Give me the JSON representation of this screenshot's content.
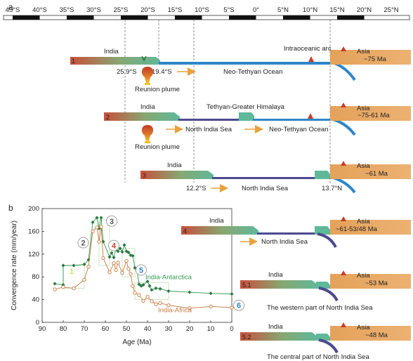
{
  "scale": {
    "labels": [
      "45°S",
      "40°S",
      "35°S",
      "30°S",
      "25°S",
      "20°S",
      "15°S",
      "10°S",
      "5°S",
      "0°",
      "5°N",
      "10°N",
      "15°N",
      "20°N",
      "25°N"
    ]
  },
  "panel_a": {
    "letter": "a",
    "colors": {
      "india_red": "#c8503c",
      "india_green": "#5fb89a",
      "asia_orange": "#e8a860",
      "ocean_blue": "#2f86c8",
      "north_sea_purple": "#4c4a8e",
      "arrow_orange": "#e8a23c",
      "arc_red": "#c83c2a",
      "plume_red": "#c03a26",
      "plume_yellow": "#f0c22c"
    },
    "row1": {
      "num": "1",
      "india": "India",
      "asia": "Asia",
      "age": "~75 Ma",
      "arc": "Intraoceanic arc",
      "lat_left": "25.9°S",
      "lat_right": "19.4°S",
      "ocean": "Neo-Tethyan Ocean",
      "plume": "Reunion plume"
    },
    "row2": {
      "num": "2",
      "india": "India",
      "asia": "Asia",
      "age": "~75-61 Ma",
      "tethyan": "Tethyan-Greater Himalaya",
      "north_sea": "North India Sea",
      "ocean": "Neo-Tethyan Ocean",
      "plume": "Reunion plume"
    },
    "row3": {
      "num": "3",
      "india": "India",
      "asia": "Asia",
      "age": "~61 Ma",
      "lat_left": "12.2°S",
      "north_sea": "North India Sea",
      "lat_right": "13.7°N"
    }
  },
  "panel_b": {
    "letter": "b",
    "row4": {
      "num": "4",
      "india": "India",
      "asia": "Asia",
      "age": "~61-53/48 Ma",
      "north_sea": "North India Sea"
    },
    "row5_1": {
      "num": "5.1",
      "india": "India",
      "asia": "Asia",
      "age": "~53 Ma",
      "caption": "The western part of North India Sea"
    },
    "row5_2": {
      "num": "5.2",
      "india": "India",
      "asia": "Asia",
      "age": "~48 Ma",
      "caption": "The central part of North India Sea"
    }
  },
  "chart_data": {
    "type": "line",
    "xlabel": "Age (Ma)",
    "ylabel": "Convergence rate (mm/year)",
    "xlim": [
      90,
      0
    ],
    "ylim": [
      0,
      200
    ],
    "xticks": [
      90,
      80,
      70,
      60,
      50,
      40,
      30,
      20,
      10,
      0
    ],
    "yticks": [
      0,
      40,
      80,
      120,
      160,
      200
    ],
    "series": [
      {
        "name": "India-Antarctica",
        "color": "#2e9a52",
        "x": [
          84,
          80,
          80,
          75,
          70,
          68,
          66,
          64,
          63,
          62,
          61,
          58,
          57,
          56,
          55,
          54,
          53,
          52,
          51,
          50,
          49,
          48,
          47,
          46,
          45,
          44,
          43,
          42,
          40,
          39,
          38,
          36,
          34,
          30,
          20,
          10,
          0
        ],
        "y": [
          68,
          66,
          100,
          100,
          102,
          110,
          176,
          184,
          165,
          184,
          142,
          115,
          122,
          114,
          128,
          125,
          130,
          124,
          136,
          125,
          123,
          118,
          117,
          96,
          92,
          67,
          64,
          66,
          72,
          64,
          57,
          60,
          59,
          55,
          53,
          51,
          50
        ]
      },
      {
        "name": "India-Africa",
        "color": "#c8783c",
        "x": [
          84,
          80,
          75,
          70,
          68,
          66,
          64,
          63,
          62,
          61,
          58,
          56,
          55,
          54,
          52,
          50,
          49,
          48,
          47,
          46,
          44,
          42,
          40,
          38,
          36,
          34,
          30,
          20,
          10,
          0
        ],
        "y": [
          58,
          62,
          60,
          75,
          98,
          160,
          167,
          142,
          168,
          113,
          88,
          104,
          92,
          105,
          87,
          108,
          94,
          85,
          64,
          52,
          48,
          38,
          45,
          37,
          32,
          34,
          30,
          25,
          28,
          26
        ]
      }
    ],
    "annotations": [
      "1",
      "2",
      "3",
      "4",
      "5",
      "6"
    ]
  }
}
